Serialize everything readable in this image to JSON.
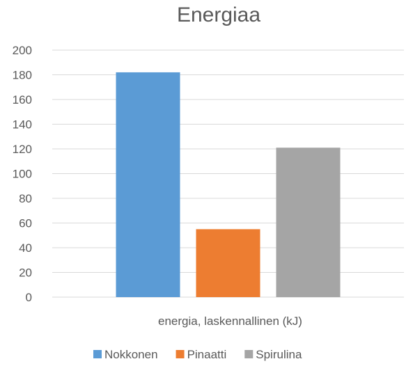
{
  "chart_data": {
    "type": "bar",
    "title": "Energiaa",
    "categories": [
      "energia, laskennallinen (kJ)"
    ],
    "series": [
      {
        "name": "Nokkonen",
        "values": [
          182
        ],
        "color": "#5B9BD5"
      },
      {
        "name": "Pinaatti",
        "values": [
          55
        ],
        "color": "#ED7D31"
      },
      {
        "name": "Spirulina",
        "values": [
          121
        ],
        "color": "#A5A5A5"
      }
    ],
    "xlabel": "",
    "ylabel": "",
    "ylim": [
      0,
      200
    ],
    "yticks": [
      "0",
      "20",
      "40",
      "60",
      "80",
      "100",
      "120",
      "140",
      "160",
      "180",
      "200"
    ],
    "grid": true,
    "legend_position": "bottom",
    "gridline_color": "#D9D9D9",
    "text_color": "#595959"
  }
}
